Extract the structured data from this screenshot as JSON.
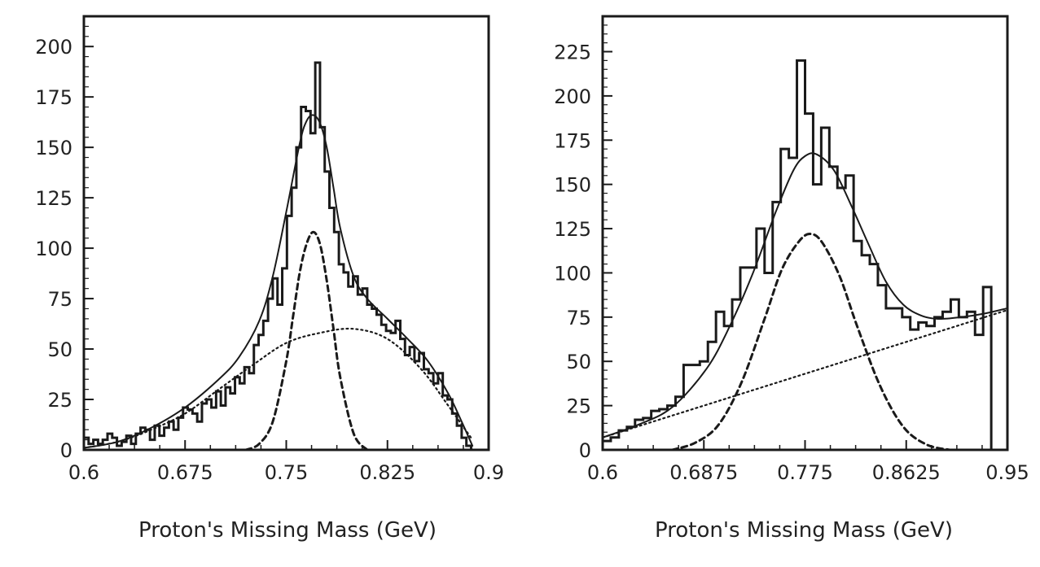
{
  "chart_data": [
    {
      "type": "histogram",
      "xlabel": "Proton's Missing Mass (GeV)",
      "ylabel": "",
      "xlim": [
        0.6,
        0.9
      ],
      "ylim": [
        0,
        215
      ],
      "xticks": [
        0.6,
        0.675,
        0.75,
        0.825,
        0.9
      ],
      "xtick_labels": [
        "0.6",
        "0.675",
        "0.75",
        "0.825",
        "0.9"
      ],
      "yticks": [
        0,
        25,
        50,
        75,
        100,
        125,
        150,
        175,
        200
      ],
      "ytick_labels": [
        "0",
        "25",
        "50",
        "75",
        "100",
        "125",
        "150",
        "175",
        "200"
      ],
      "grid": false,
      "histogram": {
        "bin_edges_start": 0.6,
        "bin_width": 0.0035,
        "counts": [
          6,
          3,
          5,
          3,
          5,
          8,
          6,
          2,
          4,
          7,
          3,
          8,
          11,
          10,
          5,
          12,
          7,
          11,
          14,
          10,
          16,
          21,
          20,
          18,
          14,
          23,
          25,
          21,
          29,
          22,
          31,
          28,
          36,
          33,
          41,
          38,
          52,
          57,
          64,
          75,
          85,
          72,
          90,
          116,
          130,
          150,
          170,
          168,
          157,
          192,
          160,
          138,
          120,
          108,
          92,
          88,
          81,
          86,
          77,
          80,
          72,
          70,
          67,
          62,
          59,
          58,
          64,
          55,
          47,
          51,
          44,
          48,
          40,
          38,
          33,
          38,
          27,
          25,
          18,
          12,
          6,
          2
        ]
      },
      "fit_total": {
        "style": "solid",
        "x": [
          0.6,
          0.625,
          0.65,
          0.675,
          0.7,
          0.715,
          0.73,
          0.74,
          0.75,
          0.76,
          0.765,
          0.77,
          0.775,
          0.78,
          0.785,
          0.79,
          0.8,
          0.81,
          0.825,
          0.84,
          0.855,
          0.87,
          0.88,
          0.888
        ],
        "y": [
          1,
          4,
          11,
          21,
          35,
          46,
          64,
          86,
          118,
          152,
          163,
          166,
          162,
          150,
          130,
          110,
          86,
          75,
          65,
          55,
          44,
          28,
          14,
          2
        ]
      },
      "fit_signal": {
        "style": "dashed",
        "x": [
          0.72,
          0.73,
          0.74,
          0.75,
          0.755,
          0.76,
          0.765,
          0.77,
          0.775,
          0.78,
          0.785,
          0.79,
          0.8,
          0.81
        ],
        "y": [
          0,
          3,
          14,
          44,
          66,
          88,
          102,
          108,
          102,
          84,
          60,
          36,
          8,
          0
        ]
      },
      "fit_background": {
        "style": "dotted",
        "x": [
          0.6,
          0.625,
          0.65,
          0.675,
          0.7,
          0.725,
          0.75,
          0.775,
          0.8,
          0.825,
          0.85,
          0.87,
          0.888
        ],
        "y": [
          1,
          4,
          10,
          18,
          30,
          42,
          53,
          58,
          60,
          55,
          40,
          22,
          5
        ]
      }
    },
    {
      "type": "histogram",
      "xlabel": "Proton's Missing Mass (GeV)",
      "ylabel": "",
      "xlim": [
        0.6,
        0.95
      ],
      "ylim": [
        0,
        245
      ],
      "xticks": [
        0.6,
        0.6875,
        0.775,
        0.8625,
        0.95
      ],
      "xtick_labels": [
        "0.6",
        "0.6875",
        "0.775",
        "0.8625",
        "0.95"
      ],
      "yticks": [
        0,
        25,
        50,
        75,
        100,
        125,
        150,
        175,
        200,
        225
      ],
      "ytick_labels": [
        "0",
        "25",
        "50",
        "75",
        "100",
        "125",
        "150",
        "175",
        "200",
        "225"
      ],
      "grid": false,
      "histogram": {
        "bin_edges_start": 0.6,
        "bin_width": 0.007,
        "counts": [
          5,
          7,
          11,
          13,
          17,
          18,
          22,
          23,
          25,
          30,
          48,
          48,
          50,
          61,
          78,
          70,
          85,
          103,
          103,
          125,
          100,
          140,
          170,
          165,
          220,
          190,
          150,
          182,
          160,
          148,
          155,
          118,
          110,
          105,
          93,
          80,
          80,
          75,
          68,
          72,
          70,
          75,
          78,
          85,
          75,
          78,
          65,
          92
        ]
      },
      "fit_total": {
        "style": "solid",
        "x": [
          0.6,
          0.63,
          0.66,
          0.69,
          0.71,
          0.73,
          0.75,
          0.765,
          0.775,
          0.785,
          0.8,
          0.815,
          0.83,
          0.845,
          0.86,
          0.875,
          0.89,
          0.91,
          0.93,
          0.95
        ],
        "y": [
          7,
          14,
          24,
          46,
          70,
          100,
          135,
          158,
          166,
          167,
          158,
          138,
          116,
          95,
          82,
          76,
          74,
          75,
          77,
          80
        ]
      },
      "fit_signal": {
        "style": "dashed",
        "x": [
          0.66,
          0.68,
          0.7,
          0.72,
          0.74,
          0.755,
          0.77,
          0.78,
          0.79,
          0.805,
          0.82,
          0.84,
          0.86,
          0.88,
          0.9
        ],
        "y": [
          0,
          4,
          14,
          38,
          74,
          102,
          118,
          122,
          117,
          98,
          70,
          36,
          13,
          3,
          0
        ]
      },
      "fit_background": {
        "style": "dotted",
        "x": [
          0.6,
          0.95
        ],
        "y": [
          7,
          79
        ]
      }
    }
  ],
  "colors": {
    "ink": "#1a1a1a",
    "background": "#ffffff"
  }
}
